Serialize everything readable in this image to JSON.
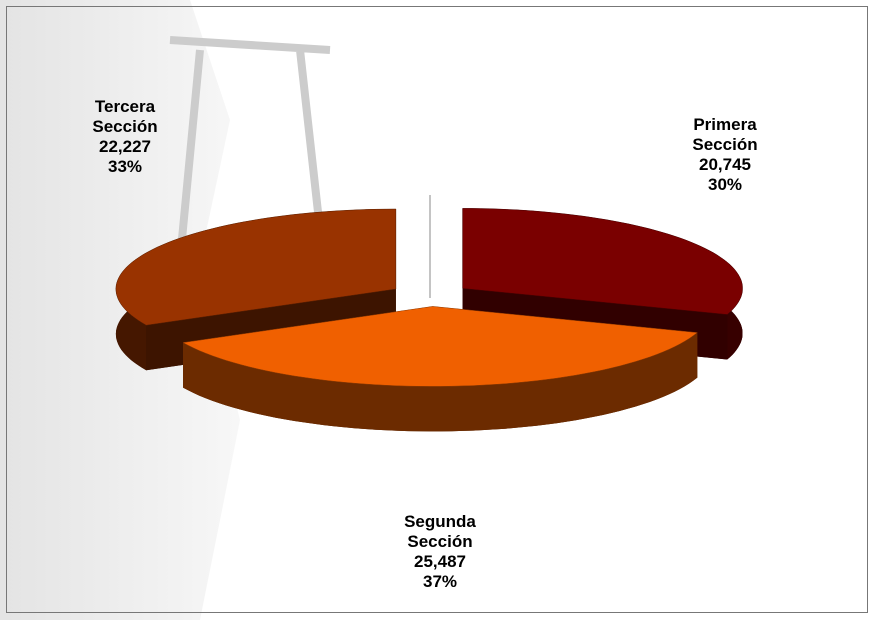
{
  "chart_data": {
    "type": "pie",
    "categories": [
      "Primera Sección",
      "Segunda Sección",
      "Tercera Sección"
    ],
    "values": [
      20745,
      25487,
      22227
    ],
    "value_labels": [
      "20,745",
      "25,487",
      "22,227"
    ],
    "percent_labels": [
      "30%",
      "37%",
      "33%"
    ],
    "colors": [
      "#7a0000",
      "#f06000",
      "#993300"
    ]
  }
}
